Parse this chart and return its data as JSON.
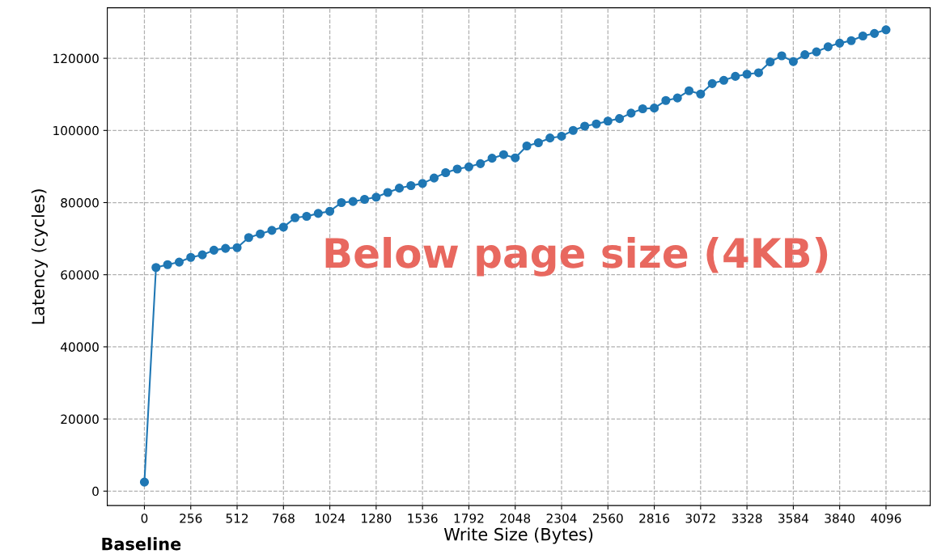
{
  "chart_data": {
    "type": "line",
    "xlabel": "Write Size (Bytes)",
    "ylabel": "Latency (cycles)",
    "x": [
      0,
      64,
      128,
      192,
      256,
      320,
      384,
      448,
      512,
      576,
      640,
      704,
      768,
      832,
      896,
      960,
      1024,
      1088,
      1152,
      1216,
      1280,
      1344,
      1408,
      1472,
      1536,
      1600,
      1664,
      1728,
      1792,
      1856,
      1920,
      1984,
      2048,
      2112,
      2176,
      2240,
      2304,
      2368,
      2432,
      2496,
      2560,
      2624,
      2688,
      2752,
      2816,
      2880,
      2944,
      3008,
      3072,
      3136,
      3200,
      3264,
      3328,
      3392,
      3456,
      3520,
      3584,
      3648,
      3712,
      3776,
      3840,
      3904,
      3968,
      4032,
      4096
    ],
    "series": [
      {
        "color": "#1f77b4",
        "values": [
          2500,
          62000,
          62800,
          63500,
          64800,
          65500,
          66800,
          67300,
          67500,
          70300,
          71300,
          72300,
          73200,
          75800,
          76200,
          77000,
          77600,
          80000,
          80300,
          80900,
          81500,
          82800,
          84000,
          84700,
          85300,
          86800,
          88300,
          89300,
          89900,
          90800,
          92300,
          93300,
          92400,
          95700,
          96600,
          97900,
          98400,
          100000,
          101200,
          101800,
          102600,
          103300,
          104800,
          106000,
          106200,
          108300,
          109000,
          111000,
          110100,
          113000,
          113900,
          115000,
          115600,
          116000,
          119000,
          120700,
          119100,
          121000,
          121800,
          123200,
          124200,
          124900,
          126200,
          126900,
          127900
        ]
      }
    ],
    "xlim": [
      -205,
      4340
    ],
    "ylim": [
      -4000,
      134000
    ],
    "xticks": [
      0,
      256,
      512,
      768,
      1024,
      1280,
      1536,
      1792,
      2048,
      2304,
      2560,
      2816,
      3072,
      3328,
      3584,
      3840,
      4096
    ],
    "yticks": [
      0,
      20000,
      40000,
      60000,
      80000,
      100000,
      120000
    ],
    "grid": true,
    "marker": "circle",
    "line_style": "solid",
    "annotations": [
      "Below page size (4KB)",
      "Baseline"
    ]
  }
}
